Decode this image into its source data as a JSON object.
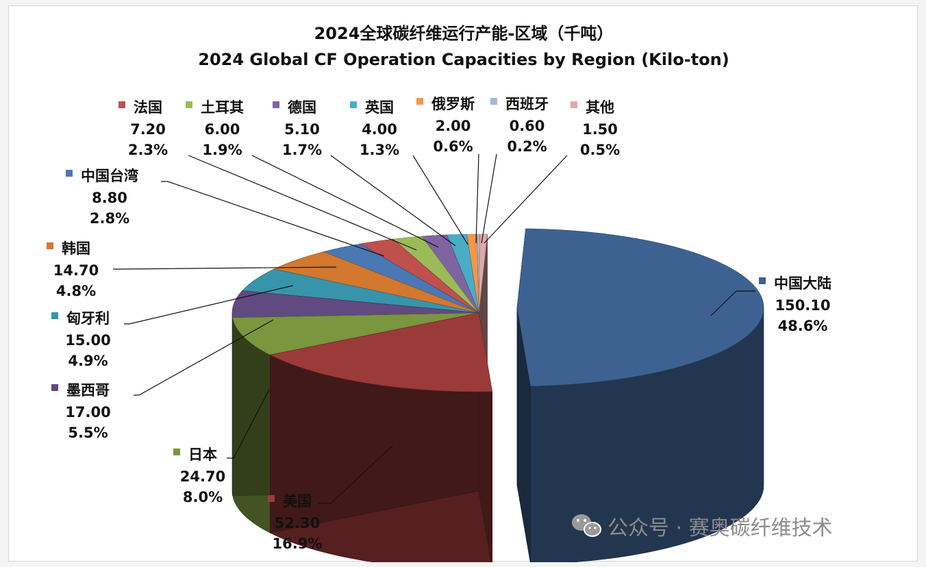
{
  "chart_data": {
    "type": "pie",
    "title": "2024全球碳纤维运行产能-区域（千吨）",
    "subtitle": "2024 Global CF Operation Capacities by Region (Kilo-ton)",
    "slices": [
      {
        "label": "中国大陆",
        "value": 150.1,
        "value_text": "150.10",
        "percent": "48.6%",
        "color": "#3d6291"
      },
      {
        "label": "美国",
        "value": 52.3,
        "value_text": "52.30",
        "percent": "16.9%",
        "color": "#9b3b39"
      },
      {
        "label": "日本",
        "value": 24.7,
        "value_text": "24.70",
        "percent": "8.0%",
        "color": "#7a963f"
      },
      {
        "label": "墨西哥",
        "value": 17.0,
        "value_text": "17.00",
        "percent": "5.5%",
        "color": "#614a80"
      },
      {
        "label": "匈牙利",
        "value": 15.0,
        "value_text": "15.00",
        "percent": "4.9%",
        "color": "#3894ab"
      },
      {
        "label": "韩国",
        "value": 14.7,
        "value_text": "14.70",
        "percent": "4.8%",
        "color": "#d2782f"
      },
      {
        "label": "中国台湾",
        "value": 8.8,
        "value_text": "8.80",
        "percent": "2.8%",
        "color": "#4a78b5"
      },
      {
        "label": "法国",
        "value": 7.2,
        "value_text": "7.20",
        "percent": "2.3%",
        "color": "#c0504d"
      },
      {
        "label": "土耳其",
        "value": 6.0,
        "value_text": "6.00",
        "percent": "1.9%",
        "color": "#9bbb59"
      },
      {
        "label": "德国",
        "value": 5.1,
        "value_text": "5.10",
        "percent": "1.7%",
        "color": "#8064a2"
      },
      {
        "label": "英国",
        "value": 4.0,
        "value_text": "4.00",
        "percent": "1.3%",
        "color": "#4bacc6"
      },
      {
        "label": "俄罗斯",
        "value": 2.0,
        "value_text": "2.00",
        "percent": "0.6%",
        "color": "#f79646"
      },
      {
        "label": "西班牙",
        "value": 0.6,
        "value_text": "0.60",
        "percent": "0.2%",
        "color": "#a5b8d8"
      },
      {
        "label": "其他",
        "value": 1.5,
        "value_text": "1.50",
        "percent": "0.5%",
        "color": "#e0a8a8"
      }
    ]
  },
  "watermark": "公众号 · 赛奥碳纤维技术"
}
